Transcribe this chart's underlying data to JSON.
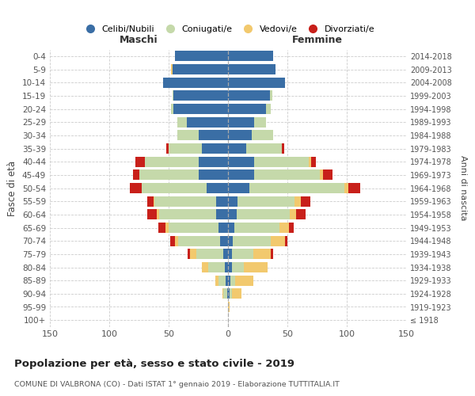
{
  "age_groups": [
    "100+",
    "95-99",
    "90-94",
    "85-89",
    "80-84",
    "75-79",
    "70-74",
    "65-69",
    "60-64",
    "55-59",
    "50-54",
    "45-49",
    "40-44",
    "35-39",
    "30-34",
    "25-29",
    "20-24",
    "15-19",
    "10-14",
    "5-9",
    "0-4"
  ],
  "birth_years": [
    "≤ 1918",
    "1919-1923",
    "1924-1928",
    "1929-1933",
    "1934-1938",
    "1939-1943",
    "1944-1948",
    "1949-1953",
    "1954-1958",
    "1959-1963",
    "1964-1968",
    "1969-1973",
    "1974-1978",
    "1979-1983",
    "1984-1988",
    "1989-1993",
    "1994-1998",
    "1999-2003",
    "2004-2008",
    "2009-2013",
    "2014-2018"
  ],
  "maschi": {
    "celibi": [
      0,
      0,
      1,
      2,
      3,
      4,
      7,
      8,
      10,
      10,
      18,
      25,
      25,
      22,
      25,
      35,
      46,
      46,
      55,
      47,
      45
    ],
    "coniugati": [
      0,
      0,
      3,
      6,
      14,
      23,
      35,
      42,
      48,
      52,
      55,
      50,
      45,
      28,
      18,
      8,
      2,
      1,
      0,
      0,
      0
    ],
    "vedovi": [
      0,
      0,
      1,
      3,
      5,
      5,
      3,
      3,
      2,
      1,
      0,
      0,
      0,
      0,
      0,
      0,
      0,
      0,
      0,
      1,
      0
    ],
    "divorziati": [
      0,
      0,
      0,
      0,
      0,
      2,
      4,
      6,
      8,
      5,
      10,
      5,
      8,
      2,
      0,
      0,
      0,
      0,
      0,
      0,
      0
    ]
  },
  "femmine": {
    "nubili": [
      0,
      0,
      1,
      2,
      3,
      3,
      4,
      5,
      7,
      8,
      18,
      22,
      22,
      15,
      20,
      22,
      32,
      35,
      48,
      40,
      38
    ],
    "coniugate": [
      0,
      0,
      2,
      4,
      10,
      18,
      32,
      38,
      45,
      48,
      80,
      55,
      46,
      30,
      18,
      10,
      4,
      2,
      0,
      0,
      0
    ],
    "vedove": [
      0,
      1,
      8,
      15,
      20,
      15,
      12,
      8,
      5,
      5,
      3,
      3,
      2,
      0,
      0,
      0,
      0,
      0,
      0,
      0,
      0
    ],
    "divorziate": [
      0,
      0,
      0,
      0,
      0,
      2,
      2,
      4,
      8,
      8,
      10,
      8,
      4,
      2,
      0,
      0,
      0,
      0,
      0,
      0,
      0
    ]
  },
  "colors": {
    "celibi": "#3a6ea5",
    "coniugati": "#c5d9aa",
    "vedovi": "#f2c96e",
    "divorziati": "#c8201a"
  },
  "title": "Popolazione per età, sesso e stato civile - 2019",
  "subtitle": "COMUNE DI VALBRONA (CO) - Dati ISTAT 1° gennaio 2019 - Elaborazione TUTTITALIA.IT",
  "xlabel_left": "Maschi",
  "xlabel_right": "Femmine",
  "ylabel_left": "Fasce di età",
  "ylabel_right": "Anni di nascita",
  "xlim": 150,
  "legend_labels": [
    "Celibi/Nubili",
    "Coniugati/e",
    "Vedovi/e",
    "Divorziati/e"
  ],
  "background_color": "#ffffff",
  "grid_color": "#cccccc",
  "tick_color": "#555555"
}
